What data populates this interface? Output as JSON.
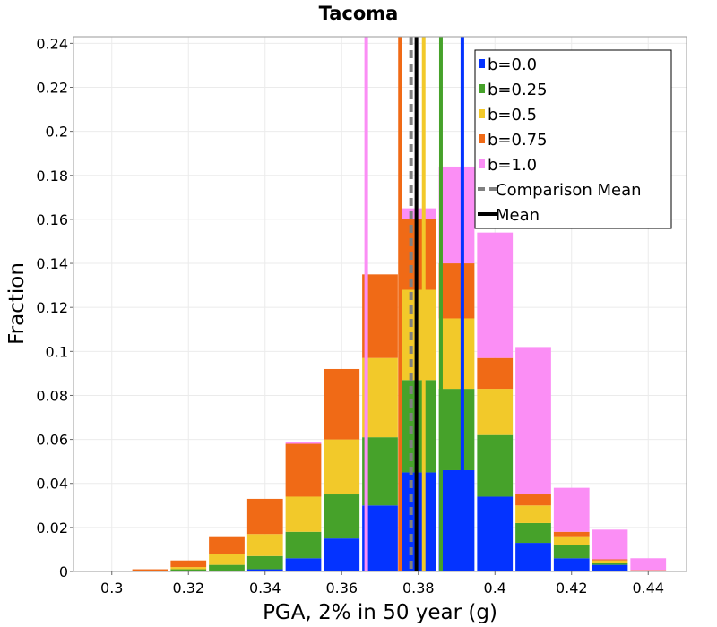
{
  "chart_data": {
    "type": "bar",
    "stacked": true,
    "title": "Tacoma",
    "xlabel": "PGA, 2% in 50 year (g)",
    "ylabel": "Fraction",
    "xlim": [
      0.29,
      0.45
    ],
    "ylim": [
      0,
      0.243
    ],
    "bin_width": 0.01,
    "grid": true,
    "legend_position": "top-right",
    "x_ticks": [
      {
        "value": 0.3,
        "label": "0.3"
      },
      {
        "value": 0.32,
        "label": "0.32"
      },
      {
        "value": 0.34,
        "label": "0.34"
      },
      {
        "value": 0.36,
        "label": "0.36"
      },
      {
        "value": 0.38,
        "label": "0.38"
      },
      {
        "value": 0.4,
        "label": "0.4"
      },
      {
        "value": 0.42,
        "label": "0.42"
      },
      {
        "value": 0.44,
        "label": "0.44"
      }
    ],
    "y_ticks": [
      {
        "value": 0,
        "label": "0"
      },
      {
        "value": 0.02,
        "label": "0.02"
      },
      {
        "value": 0.04,
        "label": "0.04"
      },
      {
        "value": 0.06,
        "label": "0.06"
      },
      {
        "value": 0.08,
        "label": "0.08"
      },
      {
        "value": 0.1,
        "label": "0.1"
      },
      {
        "value": 0.12,
        "label": "0.12"
      },
      {
        "value": 0.14,
        "label": "0.14"
      },
      {
        "value": 0.16,
        "label": "0.16"
      },
      {
        "value": 0.18,
        "label": "0.18"
      },
      {
        "value": 0.2,
        "label": "0.2"
      },
      {
        "value": 0.22,
        "label": "0.22"
      },
      {
        "value": 0.24,
        "label": "0.24"
      }
    ],
    "bin_centers": [
      0.3,
      0.31,
      0.32,
      0.33,
      0.34,
      0.35,
      0.36,
      0.37,
      0.38,
      0.39,
      0.4,
      0.41,
      0.42,
      0.43,
      0.44
    ],
    "series": [
      {
        "name": "b=0.0",
        "color": "#0433ff",
        "stack_tops": [
          0,
          0,
          0,
          0,
          0.001,
          0.006,
          0.015,
          0.03,
          0.045,
          0.046,
          0.034,
          0.013,
          0.006,
          0.003,
          0.0003
        ]
      },
      {
        "name": "b=0.25",
        "color": "#46a22a",
        "stack_tops": [
          0,
          0,
          0.001,
          0.003,
          0.007,
          0.018,
          0.035,
          0.061,
          0.087,
          0.083,
          0.062,
          0.022,
          0.012,
          0.004,
          0.0004
        ]
      },
      {
        "name": "b=0.5",
        "color": "#f2c92a",
        "stack_tops": [
          0,
          0,
          0.002,
          0.008,
          0.017,
          0.034,
          0.06,
          0.097,
          0.128,
          0.115,
          0.083,
          0.03,
          0.016,
          0.005,
          0.0005
        ]
      },
      {
        "name": "b=0.75",
        "color": "#f06a16",
        "stack_tops": [
          0,
          0.001,
          0.005,
          0.016,
          0.033,
          0.058,
          0.092,
          0.135,
          0.16,
          0.14,
          0.097,
          0.035,
          0.018,
          0.0055,
          0.0006
        ]
      },
      {
        "name": "b=1.0",
        "color": "#fb8ef5",
        "stack_tops": [
          0.0003,
          0.0008,
          0.0035,
          0.013,
          0.033,
          0.059,
          0.092,
          0.128,
          0.165,
          0.184,
          0.154,
          0.102,
          0.038,
          0.019,
          0.006
        ]
      }
    ],
    "vertical_lines": [
      {
        "name": "b=1.0",
        "x": 0.3664,
        "color": "#fb8ef5",
        "style": "solid"
      },
      {
        "name": "b=0.75",
        "x": 0.3752,
        "color": "#f06a16",
        "style": "solid"
      },
      {
        "name": "b=0.5",
        "x": 0.3814,
        "color": "#f2c92a",
        "style": "solid"
      },
      {
        "name": "b=0.25",
        "x": 0.3859,
        "color": "#46a22a",
        "style": "solid"
      },
      {
        "name": "b=0.0",
        "x": 0.3915,
        "color": "#0433ff",
        "style": "solid"
      },
      {
        "name": "Comparison Mean",
        "x": 0.3781,
        "color": "#808080",
        "style": "dashed"
      },
      {
        "name": "Mean",
        "x": 0.3795,
        "color": "#000000",
        "style": "solid"
      }
    ],
    "legend": [
      {
        "label": "b=0.0",
        "color": "#0433ff",
        "kind": "patch"
      },
      {
        "label": "b=0.25",
        "color": "#46a22a",
        "kind": "patch"
      },
      {
        "label": "b=0.5",
        "color": "#f2c92a",
        "kind": "patch"
      },
      {
        "label": "b=0.75",
        "color": "#f06a16",
        "kind": "patch"
      },
      {
        "label": "b=1.0",
        "color": "#fb8ef5",
        "kind": "patch"
      },
      {
        "label": "Comparison Mean",
        "color": "#808080",
        "kind": "dashed"
      },
      {
        "label": "Mean",
        "color": "#000000",
        "kind": "solid"
      }
    ]
  }
}
